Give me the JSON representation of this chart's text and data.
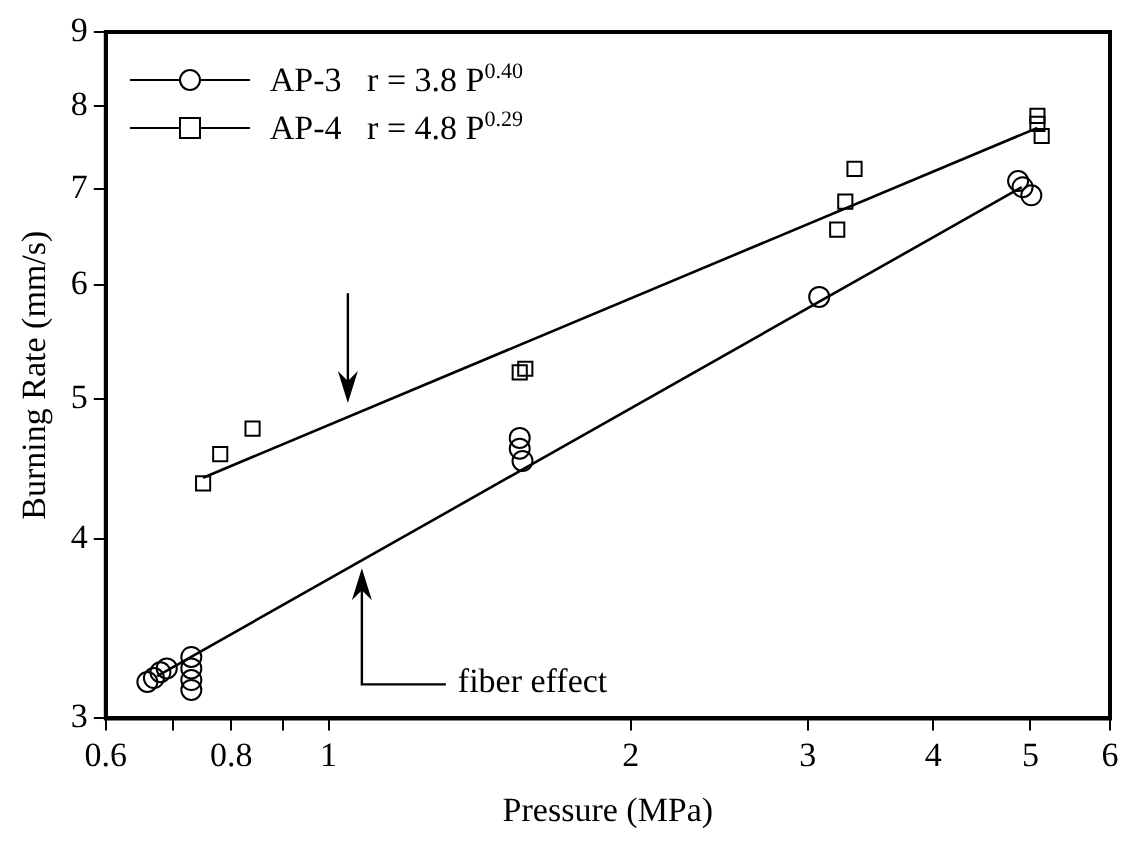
{
  "chart_data": {
    "type": "scatter",
    "xlabel": "Pressure (MPa)",
    "ylabel": "Burning Rate (mm/s)",
    "log": "xy",
    "xlim": [
      0.6,
      6
    ],
    "ylim": [
      3,
      9
    ],
    "xticks": [
      0.6,
      {
        "value": 0.7,
        "label": null
      },
      0.8,
      {
        "value": 0.9,
        "label": null
      },
      1,
      2,
      3,
      4,
      5,
      6
    ],
    "yticks": [
      3,
      4,
      5,
      6,
      7,
      8,
      9
    ],
    "grid": false,
    "legend": "top left",
    "annotations": [
      "fiber effect"
    ],
    "series": [
      {
        "name": "AP-3   r = 3.8 P$^{0.40}$",
        "marker": "circle",
        "color": "#000000",
        "x": [
          0.66,
          0.67,
          0.68,
          0.69,
          0.73,
          0.73,
          0.73,
          0.73,
          1.55,
          1.55,
          1.56,
          3.08,
          4.86,
          4.91,
          5.01
        ],
        "values": [
          3.18,
          3.2,
          3.23,
          3.25,
          3.31,
          3.25,
          3.19,
          3.14,
          4.7,
          4.62,
          4.53,
          5.89,
          7.09,
          7.02,
          6.93
        ]
      },
      {
        "name": "AP-4   r = 4.8 P$^{0.29}$",
        "marker": "square",
        "color": "#000000",
        "x": [
          0.75,
          0.78,
          0.84,
          1.55,
          1.57,
          3.21,
          3.27,
          3.34,
          5.08,
          5.08,
          5.13
        ],
        "values": [
          4.37,
          4.58,
          4.77,
          5.22,
          5.25,
          6.56,
          6.86,
          7.23,
          7.87,
          7.77,
          7.62
        ]
      },
      {
        "type": "line",
        "marker": "none",
        "color": "#000000",
        "x": [
          0.675,
          4.9
        ],
        "values": [
          3.21,
          7.02
        ]
      },
      {
        "type": "line",
        "marker": "none",
        "color": "#000000",
        "x": [
          0.75,
          5.08
        ],
        "values": [
          4.41,
          7.72
        ]
      }
    ]
  }
}
